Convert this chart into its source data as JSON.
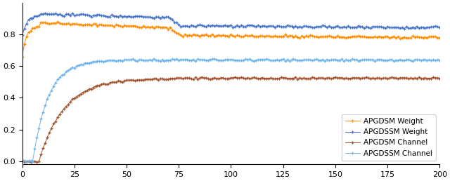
{
  "title": "",
  "xlim": [
    0,
    200
  ],
  "ylim": [
    -0.02,
    1.0
  ],
  "xticks": [
    0,
    25,
    50,
    75,
    100,
    125,
    150,
    175,
    200
  ],
  "yticks": [
    0.0,
    0.2,
    0.4,
    0.6,
    0.8
  ],
  "legend_entries": [
    "APGDSM Weight",
    "APGDSSM Weight",
    "APGDSM Channel",
    "APGDSSM Channel"
  ],
  "colors": {
    "apgdsm_weight": "#FF8C00",
    "apgdssm_weight": "#4472C4",
    "apgdsm_channel": "#A0522D",
    "apgdssm_channel": "#6EB4E8"
  },
  "marker": "+",
  "markersize": 3,
  "linewidth": 0.7,
  "figsize": [
    6.4,
    2.58
  ],
  "dpi": 100
}
